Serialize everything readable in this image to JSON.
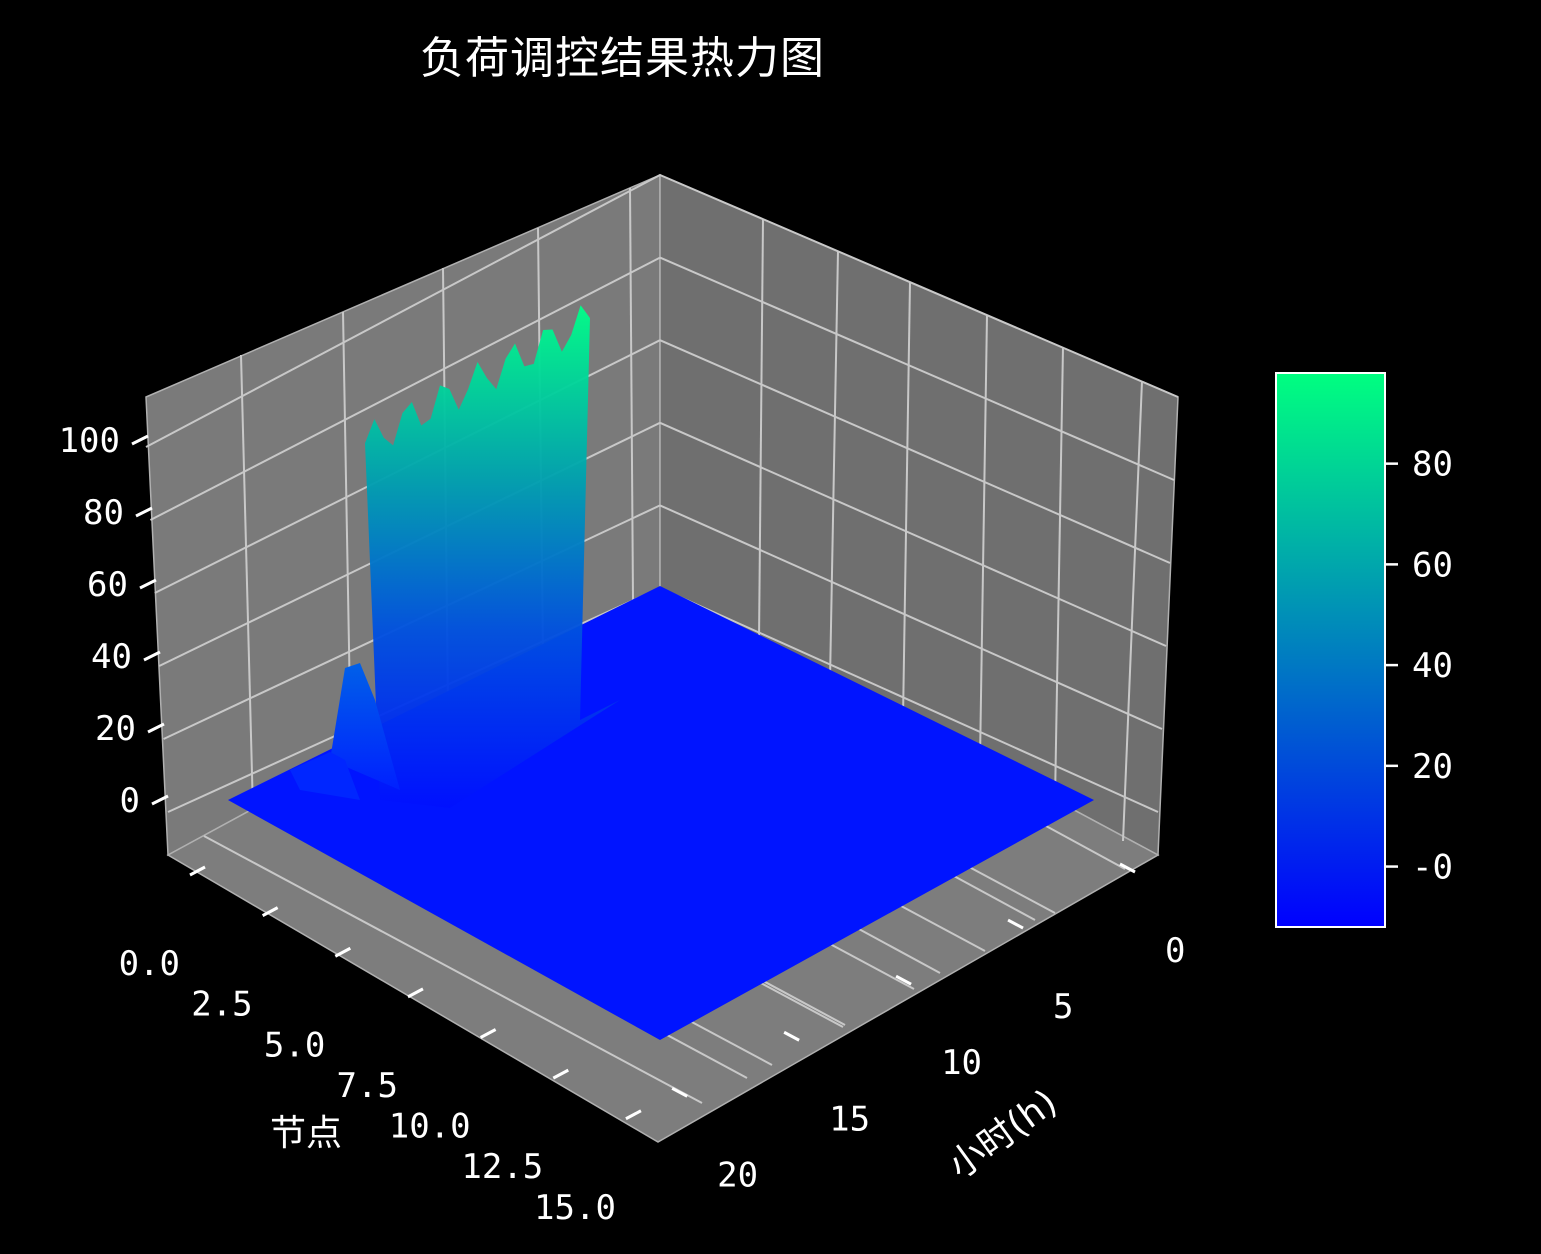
{
  "chart_data": {
    "type": "surface",
    "title": "负荷调控结果热力图",
    "xlabel": "节点",
    "ylabel": "小时(h)",
    "zlabel": "",
    "colormap": "winter",
    "colormap_colors": [
      "#0000ff",
      "#00ff80"
    ],
    "pane_color": "#7a7a7a",
    "grid": true,
    "background": "#000000",
    "x_ticks": [
      "0.0",
      "2.5",
      "5.0",
      "7.5",
      "10.0",
      "12.5",
      "15.0"
    ],
    "x_range": [
      0,
      16
    ],
    "y_ticks": [
      "0",
      "5",
      "10",
      "15",
      "20"
    ],
    "y_range": [
      0,
      23
    ],
    "z_ticks": [
      "0",
      "20",
      "40",
      "60",
      "80",
      "100"
    ],
    "z_range": [
      -10,
      110
    ],
    "colorbar": {
      "ticks": [
        "-0",
        "20",
        "40",
        "60",
        "80"
      ],
      "range": [
        -12,
        98
      ]
    },
    "series": [
      {
        "node": 0,
        "hours": [
          0,
          23
        ],
        "load": [
          1,
          1
        ]
      },
      {
        "node": 0.5,
        "hours": [
          0,
          23
        ],
        "load": [
          4,
          4
        ]
      },
      {
        "node": 1,
        "hours": [
          0,
          23
        ],
        "load": [
          3,
          3
        ]
      },
      {
        "node": 2,
        "hours": [
          0,
          23
        ],
        "load": [
          45,
          48
        ]
      },
      {
        "node": 3,
        "hours": [
          0,
          23
        ],
        "load": [
          92,
          95
        ]
      },
      {
        "node": 4,
        "hours": [
          0,
          23
        ],
        "load": [
          8,
          6
        ]
      },
      {
        "node": 5,
        "hours": [
          0,
          23
        ],
        "load": [
          0,
          0
        ]
      },
      {
        "node": 16,
        "hours": [
          0,
          23
        ],
        "load": [
          0,
          0
        ]
      }
    ]
  }
}
